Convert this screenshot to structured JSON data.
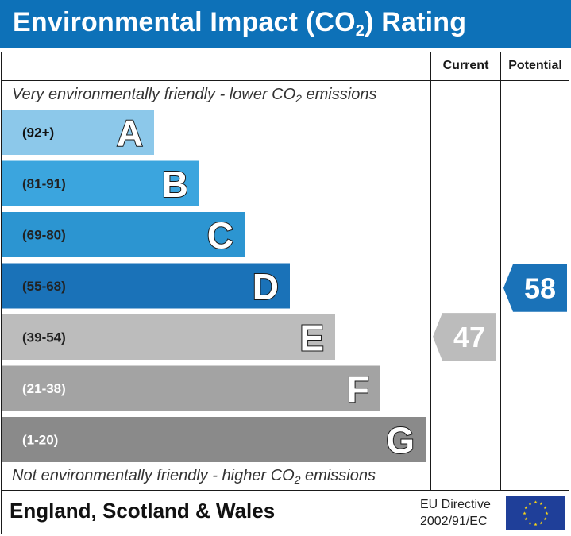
{
  "header": {
    "title_prefix": "Environmental Impact (CO",
    "title_sub": "2",
    "title_suffix": ") Rating"
  },
  "columns": {
    "current": "Current",
    "potential": "Potential"
  },
  "notes": {
    "top_prefix": "Very environmentally friendly - lower CO",
    "top_sub": "2",
    "top_suffix": " emissions",
    "bottom_prefix": "Not environmentally friendly - higher CO",
    "bottom_sub": "2",
    "bottom_suffix": " emissions"
  },
  "chart_data": {
    "type": "bar",
    "categories": [
      "A",
      "B",
      "C",
      "D",
      "E",
      "F",
      "G"
    ],
    "ranges": [
      "(92+)",
      "(81-91)",
      "(69-80)",
      "(55-68)",
      "(39-54)",
      "(21-38)",
      "(1-20)"
    ],
    "colors": [
      "#8cc8ea",
      "#3ba5de",
      "#2c95d1",
      "#1a72b8",
      "#bcbcbc",
      "#a3a3a3",
      "#8a8a8a"
    ],
    "range_text_colors": [
      "#111111",
      "#222222",
      "#222222",
      "#222222",
      "#222222",
      "#ffffff",
      "#ffffff"
    ],
    "current": {
      "value": 47,
      "band": "E",
      "color": "#bcbcbc"
    },
    "potential": {
      "value": 58,
      "band": "D",
      "color": "#1a72b8"
    }
  },
  "footer": {
    "country": "England, Scotland & Wales",
    "directive_line1": "EU Directive",
    "directive_line2": "2002/91/EC"
  },
  "icons": {
    "flag": "eu-flag-icon"
  }
}
